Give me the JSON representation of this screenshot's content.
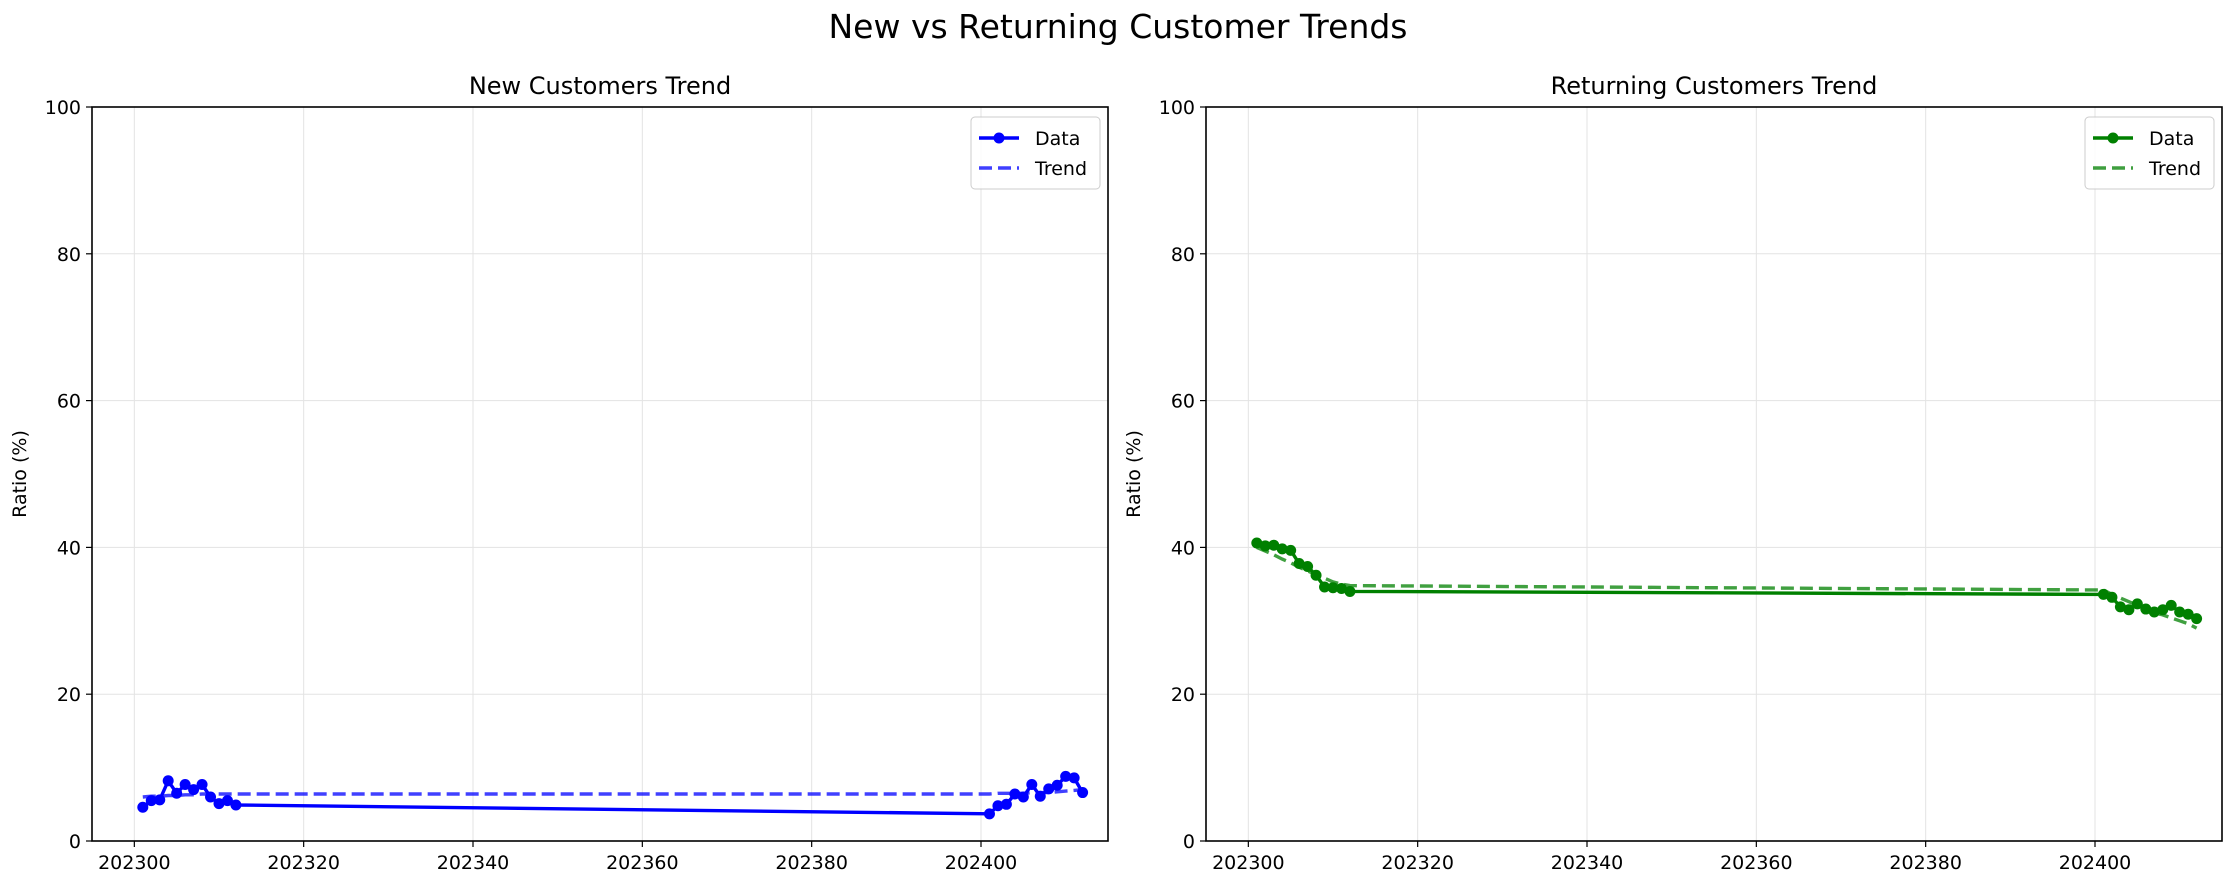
{
  "figure": {
    "title": "New vs Returning Customer Trends"
  },
  "chart_data": [
    {
      "type": "line",
      "title": "New Customers Trend",
      "xlabel": "",
      "ylabel": "Ratio (%)",
      "xlim": [
        202295,
        202415
      ],
      "ylim": [
        0,
        100
      ],
      "xticks": [
        202300,
        202320,
        202340,
        202360,
        202380,
        202400
      ],
      "yticks": [
        0,
        20,
        40,
        60,
        80,
        100
      ],
      "grid": true,
      "legend": "top-right",
      "color": "#0000ff",
      "x": [
        202301,
        202302,
        202303,
        202304,
        202305,
        202306,
        202307,
        202308,
        202309,
        202310,
        202311,
        202312,
        202401,
        202402,
        202403,
        202404,
        202405,
        202406,
        202407,
        202408,
        202409,
        202410,
        202411,
        202412
      ],
      "series": [
        {
          "name": "Data",
          "style": "solid-marker",
          "values": [
            4.6,
            5.5,
            5.6,
            8.2,
            6.5,
            7.7,
            7.0,
            7.7,
            6.0,
            5.1,
            5.5,
            4.9,
            3.7,
            4.8,
            5.0,
            6.4,
            6.0,
            7.7,
            6.1,
            7.1,
            7.6,
            8.8,
            8.6,
            6.6
          ]
        },
        {
          "name": "Trend",
          "style": "dashed",
          "values": [
            6.0,
            6.1,
            6.1,
            6.2,
            6.2,
            6.3,
            6.3,
            6.4,
            6.4,
            6.4,
            6.4,
            6.4,
            6.4,
            6.5,
            6.5,
            6.5,
            6.5,
            6.6,
            6.6,
            6.6,
            6.7,
            6.8,
            6.9,
            7.0
          ]
        }
      ]
    },
    {
      "type": "line",
      "title": "Returning Customers Trend",
      "xlabel": "",
      "ylabel": "Ratio (%)",
      "xlim": [
        202295,
        202415
      ],
      "ylim": [
        0,
        100
      ],
      "xticks": [
        202300,
        202320,
        202340,
        202360,
        202380,
        202400
      ],
      "yticks": [
        0,
        20,
        40,
        60,
        80,
        100
      ],
      "grid": true,
      "legend": "top-right",
      "color": "#008000",
      "x": [
        202301,
        202302,
        202303,
        202304,
        202305,
        202306,
        202307,
        202308,
        202309,
        202310,
        202311,
        202312,
        202401,
        202402,
        202403,
        202404,
        202405,
        202406,
        202407,
        202408,
        202409,
        202410,
        202411,
        202412
      ],
      "series": [
        {
          "name": "Data",
          "style": "solid-marker",
          "values": [
            40.6,
            40.2,
            40.3,
            39.8,
            39.6,
            37.8,
            37.4,
            36.2,
            34.6,
            34.5,
            34.4,
            34.0,
            33.6,
            33.2,
            31.9,
            31.5,
            32.3,
            31.6,
            31.2,
            31.5,
            32.1,
            31.2,
            30.9,
            30.3
          ]
        },
        {
          "name": "Trend",
          "style": "dashed",
          "values": [
            40.0,
            39.5,
            39.0,
            38.4,
            37.9,
            37.3,
            36.8,
            36.3,
            35.8,
            35.3,
            35.0,
            34.8,
            34.2,
            33.6,
            33.1,
            32.6,
            32.1,
            31.6,
            31.1,
            30.8,
            30.4,
            30.0,
            29.6,
            29.0
          ]
        }
      ]
    }
  ]
}
